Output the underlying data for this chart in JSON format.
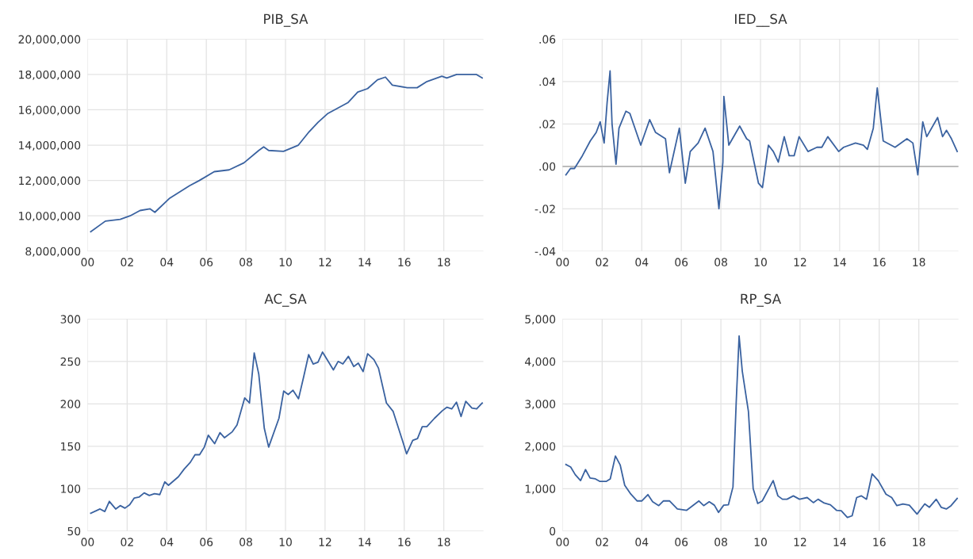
{
  "chart_data": [
    {
      "type": "line",
      "title": "PIB_SA",
      "xlim": [
        2000,
        2020
      ],
      "xticks": [
        {
          "value": 2000,
          "label": "00"
        },
        {
          "value": 2002,
          "label": "02"
        },
        {
          "value": 2004,
          "label": "04"
        },
        {
          "value": 2006,
          "label": "06"
        },
        {
          "value": 2008,
          "label": "08"
        },
        {
          "value": 2010,
          "label": "10"
        },
        {
          "value": 2012,
          "label": "12"
        },
        {
          "value": 2014,
          "label": "14"
        },
        {
          "value": 2016,
          "label": "16"
        },
        {
          "value": 2018,
          "label": "18"
        }
      ],
      "ylim": [
        8000000,
        20000000
      ],
      "yticks": [
        {
          "value": 8000000,
          "label": "8,000,000"
        },
        {
          "value": 10000000,
          "label": "10,000,000"
        },
        {
          "value": 12000000,
          "label": "12,000,000"
        },
        {
          "value": 14000000,
          "label": "14,000,000"
        },
        {
          "value": 16000000,
          "label": "16,000,000"
        },
        {
          "value": 18000000,
          "label": "18,000,000"
        },
        {
          "value": 20000000,
          "label": "20,000,000"
        }
      ],
      "grid": true,
      "series": [
        {
          "color": "#3a62a0",
          "x": [
            2000.16,
            2000.9,
            2001.65,
            2002.15,
            2002.65,
            2003.15,
            2003.4,
            2004.15,
            2005.15,
            2005.65,
            2006.4,
            2007.15,
            2007.9,
            2008.65,
            2008.9,
            2009.15,
            2009.9,
            2010.65,
            2011.15,
            2011.65,
            2012.15,
            2012.65,
            2013.15,
            2013.65,
            2014.15,
            2014.65,
            2015.05,
            2015.4,
            2016.15,
            2016.65,
            2017.15,
            2017.9,
            2018.15,
            2018.65,
            2019.65,
            2019.94
          ],
          "values": [
            9100000,
            9700000,
            9800000,
            10000000,
            10300000,
            10400000,
            10200000,
            11000000,
            11700000,
            12000000,
            12500000,
            12600000,
            13000000,
            13700000,
            13900000,
            13700000,
            13650000,
            14000000,
            14700000,
            15300000,
            15800000,
            16100000,
            16400000,
            17000000,
            17200000,
            17700000,
            17850000,
            17400000,
            17250000,
            17250000,
            17600000,
            17900000,
            17800000,
            18000000,
            18000000,
            17800000
          ]
        }
      ]
    },
    {
      "type": "line",
      "title": "IED__SA",
      "xlim": [
        2000,
        2020
      ],
      "xticks": [
        {
          "value": 2000,
          "label": "00"
        },
        {
          "value": 2002,
          "label": "02"
        },
        {
          "value": 2004,
          "label": "04"
        },
        {
          "value": 2006,
          "label": "06"
        },
        {
          "value": 2008,
          "label": "08"
        },
        {
          "value": 2010,
          "label": "10"
        },
        {
          "value": 2012,
          "label": "12"
        },
        {
          "value": 2014,
          "label": "14"
        },
        {
          "value": 2016,
          "label": "16"
        },
        {
          "value": 2018,
          "label": "18"
        }
      ],
      "ylim": [
        -0.04,
        0.06
      ],
      "yticks": [
        {
          "value": -0.04,
          "label": "-.04"
        },
        {
          "value": -0.02,
          "label": "-.02"
        },
        {
          "value": 0,
          "label": ".00"
        },
        {
          "value": 0.02,
          "label": ".02"
        },
        {
          "value": 0.04,
          "label": ".04"
        },
        {
          "value": 0.06,
          "label": ".06"
        }
      ],
      "grid": true,
      "ref_lines": [
        {
          "axis": "y",
          "value": 0,
          "color": "#b4b4b4"
        }
      ],
      "series": [
        {
          "color": "#3a62a0",
          "x": [
            2000.17,
            2000.4,
            2000.6,
            2001.0,
            2001.4,
            2001.7,
            2001.9,
            2002.1,
            2002.25,
            2002.4,
            2002.5,
            2002.7,
            2002.85,
            2003.2,
            2003.4,
            2003.95,
            2004.4,
            2004.7,
            2005.2,
            2005.4,
            2005.9,
            2006.2,
            2006.45,
            2006.85,
            2007.2,
            2007.6,
            2007.9,
            2008.1,
            2008.15,
            2008.4,
            2008.95,
            2009.3,
            2009.45,
            2009.9,
            2010.1,
            2010.4,
            2010.65,
            2010.9,
            2011.2,
            2011.45,
            2011.7,
            2011.95,
            2012.4,
            2012.85,
            2013.1,
            2013.4,
            2013.95,
            2014.2,
            2014.8,
            2015.2,
            2015.4,
            2015.7,
            2015.9,
            2016.2,
            2016.8,
            2017.4,
            2017.7,
            2017.95,
            2018.2,
            2018.4,
            2018.95,
            2019.2,
            2019.4,
            2019.65,
            2019.94
          ],
          "values": [
            -0.004,
            -0.001,
            -0.001,
            0.005,
            0.012,
            0.016,
            0.021,
            0.011,
            0.03,
            0.045,
            0.02,
            0.001,
            0.018,
            0.026,
            0.025,
            0.01,
            0.022,
            0.016,
            0.013,
            -0.003,
            0.018,
            -0.008,
            0.007,
            0.011,
            0.018,
            0.007,
            -0.02,
            0.002,
            0.033,
            0.01,
            0.019,
            0.013,
            0.012,
            -0.008,
            -0.01,
            0.01,
            0.007,
            0.002,
            0.014,
            0.005,
            0.005,
            0.014,
            0.007,
            0.009,
            0.009,
            0.014,
            0.007,
            0.009,
            0.011,
            0.01,
            0.008,
            0.018,
            0.037,
            0.012,
            0.009,
            0.013,
            0.011,
            -0.004,
            0.021,
            0.014,
            0.023,
            0.014,
            0.017,
            0.013,
            0.007
          ]
        }
      ]
    },
    {
      "type": "line",
      "title": "AC_SA",
      "xlim": [
        2000,
        2020
      ],
      "xticks": [
        {
          "value": 2000,
          "label": "00"
        },
        {
          "value": 2002,
          "label": "02"
        },
        {
          "value": 2004,
          "label": "04"
        },
        {
          "value": 2006,
          "label": "06"
        },
        {
          "value": 2008,
          "label": "08"
        },
        {
          "value": 2010,
          "label": "10"
        },
        {
          "value": 2012,
          "label": "12"
        },
        {
          "value": 2014,
          "label": "14"
        },
        {
          "value": 2016,
          "label": "16"
        },
        {
          "value": 2018,
          "label": "18"
        }
      ],
      "ylim": [
        50,
        300
      ],
      "yticks": [
        50,
        100,
        150,
        200,
        250,
        300
      ],
      "grid": true,
      "series": [
        {
          "color": "#3a62a0",
          "x": [
            2000.16,
            2000.63,
            2000.87,
            2001.1,
            2001.42,
            2001.65,
            2001.89,
            2002.13,
            2002.36,
            2002.6,
            2002.86,
            2003.12,
            2003.38,
            2003.65,
            2003.9,
            2004.09,
            2004.59,
            2004.88,
            2005.19,
            2005.43,
            2005.66,
            2005.9,
            2006.1,
            2006.42,
            2006.69,
            2006.92,
            2007.31,
            2007.55,
            2007.94,
            2008.18,
            2008.42,
            2008.65,
            2008.93,
            2009.15,
            2009.67,
            2009.91,
            2010.14,
            2010.38,
            2010.66,
            2010.93,
            2011.17,
            2011.4,
            2011.64,
            2011.87,
            2012.11,
            2012.42,
            2012.66,
            2012.9,
            2013.18,
            2013.45,
            2013.68,
            2013.92,
            2014.15,
            2014.47,
            2014.7,
            2015.1,
            2015.44,
            2015.88,
            2016.12,
            2016.43,
            2016.67,
            2016.91,
            2017.14,
            2017.53,
            2017.93,
            2018.16,
            2018.4,
            2018.64,
            2018.87,
            2019.11,
            2019.42,
            2019.66,
            2019.94
          ],
          "values": [
            71,
            76,
            73,
            85,
            76,
            80,
            77,
            81,
            89,
            90,
            95,
            92,
            94,
            93,
            108,
            104,
            114,
            123,
            131,
            140,
            140,
            149,
            163,
            153,
            166,
            160,
            167,
            175,
            207,
            201,
            260,
            235,
            171,
            149,
            183,
            215,
            211,
            216,
            206,
            233,
            258,
            247,
            249,
            261,
            252,
            240,
            250,
            247,
            256,
            244,
            248,
            238,
            259,
            252,
            242,
            201,
            191,
            159,
            141,
            157,
            159,
            173,
            173,
            183,
            192,
            196,
            194,
            202,
            185,
            203,
            195,
            194,
            201
          ]
        }
      ]
    },
    {
      "type": "line",
      "title": "RP_SA",
      "xlim": [
        2000,
        2020
      ],
      "xticks": [
        {
          "value": 2000,
          "label": "00"
        },
        {
          "value": 2002,
          "label": "02"
        },
        {
          "value": 2004,
          "label": "04"
        },
        {
          "value": 2006,
          "label": "06"
        },
        {
          "value": 2008,
          "label": "08"
        },
        {
          "value": 2010,
          "label": "10"
        },
        {
          "value": 2012,
          "label": "12"
        },
        {
          "value": 2014,
          "label": "14"
        },
        {
          "value": 2016,
          "label": "16"
        },
        {
          "value": 2018,
          "label": "18"
        }
      ],
      "ylim": [
        0,
        5000
      ],
      "yticks": [
        0,
        {
          "value": 1000,
          "label": "1,000"
        },
        {
          "value": 2000,
          "label": "2,000"
        },
        {
          "value": 3000,
          "label": "3,000"
        },
        {
          "value": 4000,
          "label": "4,000"
        },
        {
          "value": 5000,
          "label": "5,000"
        }
      ],
      "grid": true,
      "series": [
        {
          "color": "#3a62a0",
          "x": [
            2000.17,
            2000.41,
            2000.64,
            2000.91,
            2001.16,
            2001.39,
            2001.66,
            2001.89,
            2002.2,
            2002.41,
            2002.67,
            2002.91,
            2003.14,
            2003.45,
            2003.77,
            2004.0,
            2004.31,
            2004.55,
            2004.86,
            2005.09,
            2005.41,
            2005.8,
            2006.27,
            2006.47,
            2006.89,
            2007.13,
            2007.41,
            2007.67,
            2007.88,
            2008.14,
            2008.38,
            2008.61,
            2008.77,
            2008.92,
            2009.08,
            2009.39,
            2009.63,
            2009.86,
            2010.09,
            2010.64,
            2010.88,
            2011.11,
            2011.34,
            2011.66,
            2011.97,
            2012.36,
            2012.67,
            2012.91,
            2013.22,
            2013.53,
            2013.84,
            2014.08,
            2014.39,
            2014.63,
            2014.86,
            2015.09,
            2015.36,
            2015.64,
            2015.95,
            2016.34,
            2016.63,
            2016.89,
            2017.2,
            2017.52,
            2017.91,
            2018.3,
            2018.53,
            2018.88,
            2019.13,
            2019.39,
            2019.63,
            2019.94
          ],
          "values": [
            1570,
            1510,
            1330,
            1190,
            1450,
            1250,
            1230,
            1170,
            1170,
            1230,
            1770,
            1560,
            1080,
            870,
            710,
            710,
            860,
            690,
            600,
            710,
            710,
            520,
            490,
            560,
            710,
            600,
            690,
            610,
            440,
            610,
            620,
            1040,
            3000,
            4600,
            3770,
            2820,
            1000,
            650,
            710,
            1190,
            830,
            750,
            750,
            830,
            750,
            790,
            670,
            750,
            660,
            620,
            490,
            480,
            320,
            360,
            790,
            830,
            750,
            1350,
            1190,
            870,
            790,
            600,
            640,
            610,
            400,
            640,
            560,
            750,
            560,
            520,
            600,
            770
          ]
        }
      ]
    }
  ]
}
